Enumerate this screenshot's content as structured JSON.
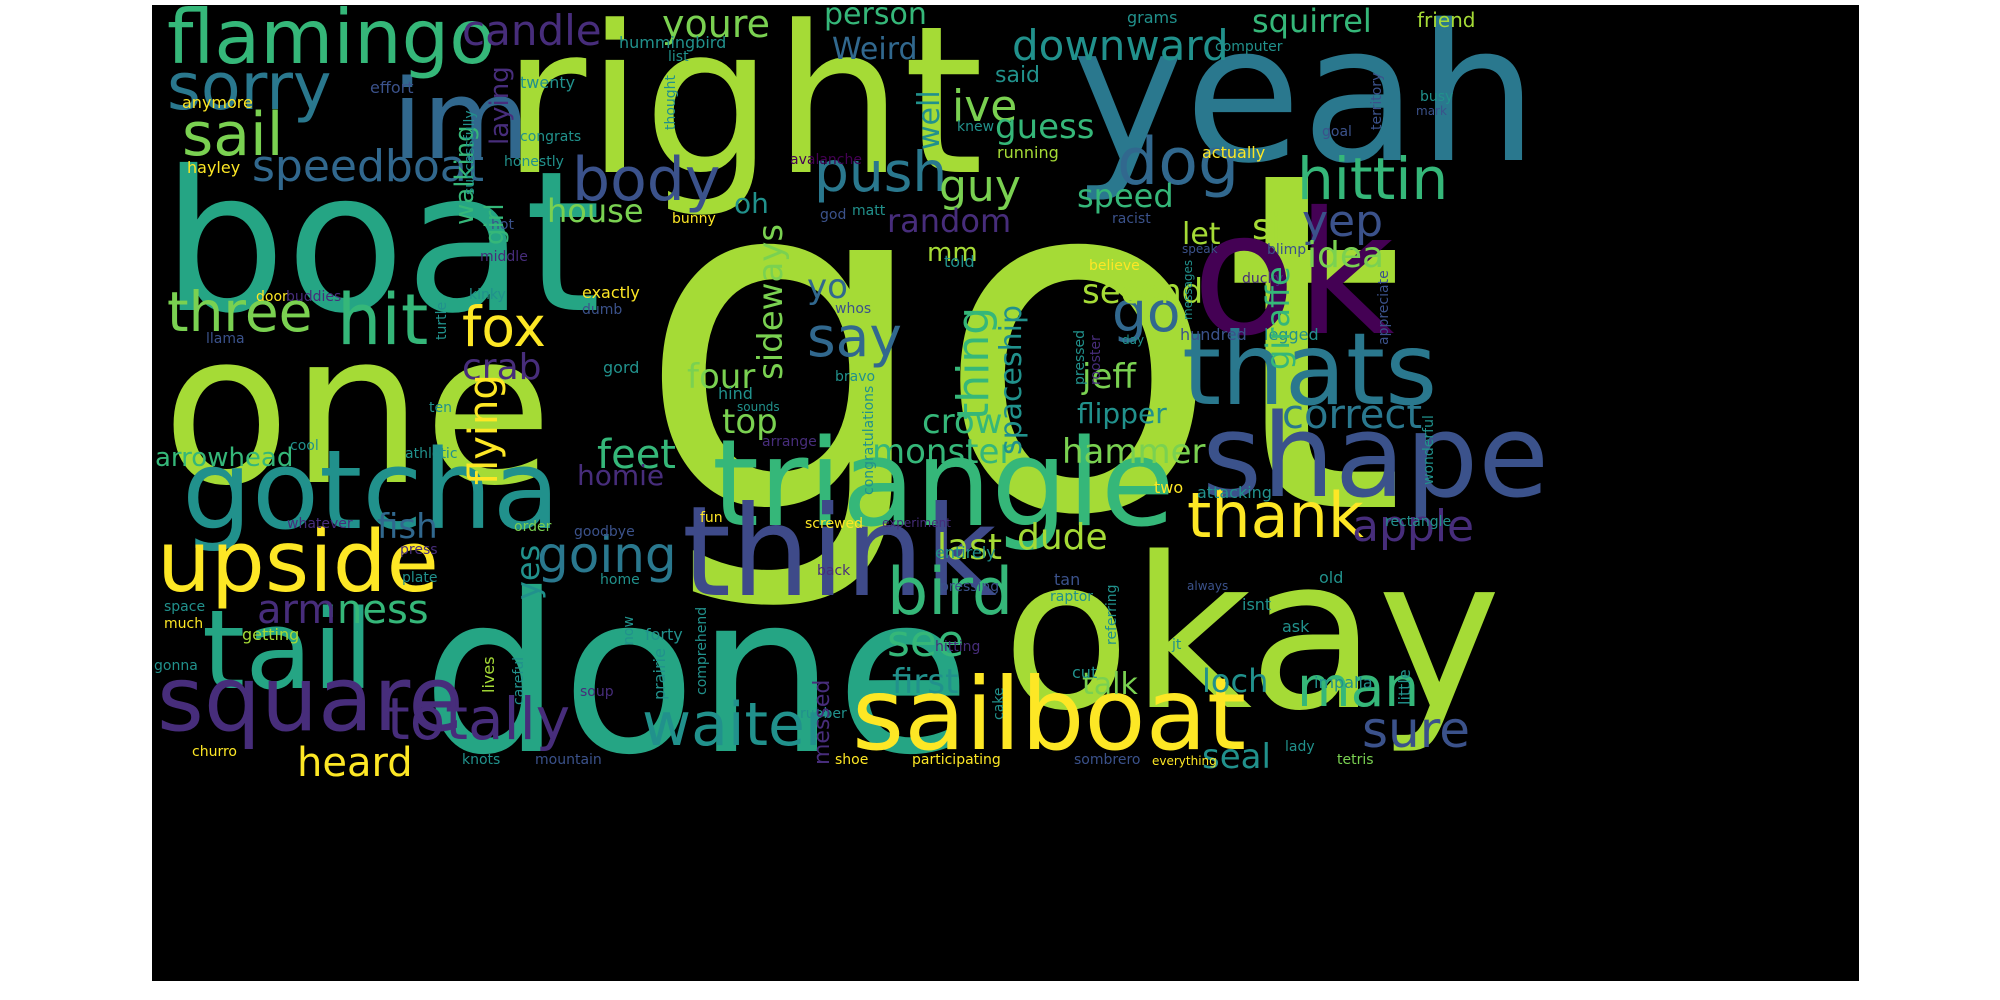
{
  "words": {
    "got": "got",
    "right": "right",
    "yeah": "yeah",
    "boat": "boat",
    "one": "one",
    "done": "done",
    "okay": "okay",
    "ok": "ok",
    "im": "im",
    "triangle": "triangle",
    "think": "think",
    "gotcha": "gotcha",
    "shape": "shape",
    "sailboat": "sailboat",
    "thats": "thats",
    "tail": "tail",
    "upside": "upside",
    "square": "square",
    "flamingo": "flamingo",
    "sorry": "sorry",
    "sail": "sail",
    "speedboat": "speedboat",
    "three": "three",
    "hit": "hit",
    "candle": "candle",
    "youre": "youre",
    "person": "person",
    "downward": "downward",
    "squirrel": "squirrel",
    "friend": "friend",
    "weird": "Weird",
    "effort": "effort",
    "twenty": "twenty",
    "anymore": "anymore",
    "hummingbird": "hummingbird",
    "list": "list",
    "grams": "grams",
    "computer": "computer",
    "busy": "busy",
    "territory": "territory",
    "ive": "ive",
    "said": "said",
    "guess": "guess",
    "well": "well",
    "laying": "laying",
    "walking": "walking",
    "body": "body",
    "push": "push",
    "dog": "dog",
    "hittin": "hittin",
    "guy": "guy",
    "speed": "speed",
    "yep": "yep",
    "sir": "sir",
    "idea": "idea",
    "let": "let",
    "random": "random",
    "house": "house",
    "girl": "girl",
    "mm": "mm",
    "go": "go",
    "second": "second",
    "fox": "fox",
    "say": "say",
    "crab": "crab",
    "yo": "yo",
    "thing": "thing",
    "spaceship": "spaceship",
    "giraffe": "giraffe",
    "jeff": "jeff",
    "sideways": "sideways",
    "four": "four",
    "flying": "flying",
    "correct": "correct",
    "flipper": "flipper",
    "top": "top",
    "crow": "crow",
    "monster": "monster",
    "hammer": "hammer",
    "feet": "feet",
    "homie": "homie",
    "arrowhead": "arrowhead",
    "fish": "fish",
    "thank": "thank",
    "apple": "apple",
    "dude": "dude",
    "last": "last",
    "going": "going",
    "yes": "yes",
    "arm": "arm",
    "ness": "ness",
    "bird": "bird",
    "see": "see",
    "first": "first",
    "talk": "talk",
    "loch": "loch",
    "man": "man",
    "sure": "sure",
    "seal": "seal",
    "waiter": "waiter",
    "totally": "totally",
    "heard": "heard",
    "messed": "messed",
    "mm2": "hundred",
    "legged": "legged",
    "exactly": "exactly",
    "dumb": "dumb",
    "whos": "whos",
    "bravo": "bravo",
    "gord": "gord",
    "hind": "hind",
    "sounds": "sounds",
    "arrange": "arrange",
    "cool": "cool",
    "athletic": "athletic",
    "whatever": "whatever",
    "order": "order",
    "goodbye": "goodbye",
    "fun": "fun",
    "screwed": "screwed",
    "experiment": "experiment",
    "press": "press",
    "plate": "plate",
    "home": "home",
    "back": "back",
    "space": "space",
    "much": "much",
    "getting": "getting",
    "gonna": "gonna",
    "forty": "forty",
    "now": "now",
    "prairie": "prairie",
    "comprehend": "comprehend",
    "careful": "careful",
    "lives": "lives",
    "soup": "soup",
    "rubber": "rubber",
    "churro": "churro",
    "knots": "knots",
    "mountain": "mountain",
    "shoe": "shoe",
    "participating": "participating",
    "sombrero": "sombrero",
    "everything": "everything",
    "lady": "lady",
    "tetris": "tetris",
    "little": "little",
    "impalla": "impalla",
    "cake": "cake",
    "cut": "cut",
    "jt": "jt",
    "hitting": "hitting",
    "referring": "referring",
    "ask": "ask",
    "old": "old",
    "isnt": "isnt",
    "tan": "tan",
    "raptor": "raptor",
    "always": "always",
    "entirely": "entirely",
    "pressing": "pressing",
    "two": "two",
    "attacking": "attacking",
    "rectangle": "rectangle",
    "wonderful": "wonderful",
    "appreciate": "appreciate",
    "day": "day",
    "messages": "messages",
    "ducky": "ducky",
    "speak": "speak",
    "blimp": "blimp",
    "racist": "racist",
    "believe": "believe",
    "pressed": "pressed",
    "rooster": "rooster",
    "congratulations": "congratulations",
    "told": "told",
    "god": "god",
    "matt": "matt",
    "bunny": "bunny",
    "avalanche": "avalanche",
    "actually": "actually",
    "running": "running",
    "knew": "knew",
    "goal": "goal",
    "mark": "mark",
    "congrats": "congrats",
    "honestly": "honestly",
    "successfully": "successfully",
    "thought": "thought",
    "hayley": "hayley",
    "hot": "hot",
    "middle": "middle",
    "door": "door",
    "buddies": "buddies",
    "llama": "llama",
    "kinky": "kinky",
    "turtle": "turtle",
    "ten": "ten",
    "oh": "oh"
  }
}
